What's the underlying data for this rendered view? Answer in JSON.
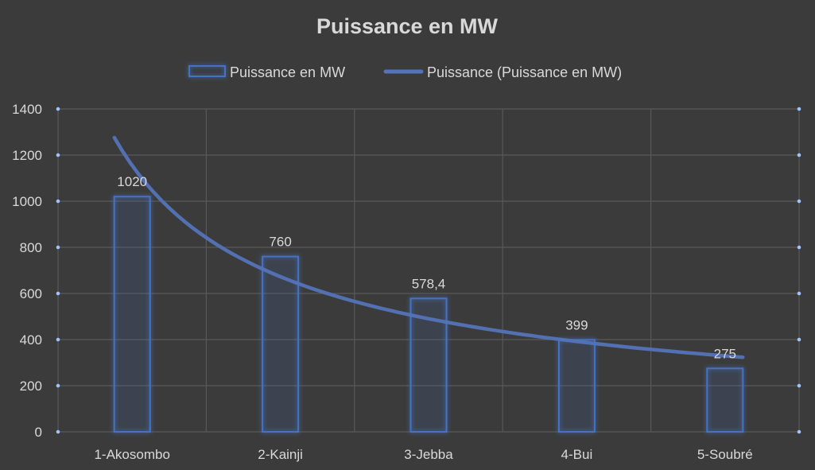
{
  "chart_data": {
    "type": "bar",
    "title": "Puissance en MW",
    "categories": [
      "1-Akosombo",
      "2-Kainji",
      "3-Jebba",
      "4-Bui",
      "5-Soubré"
    ],
    "series": [
      {
        "name": "Puissance en MW",
        "values": [
          1020,
          760,
          578.4,
          399,
          275
        ],
        "data_labels": [
          "1020",
          "760",
          "578,4",
          "399",
          "275"
        ]
      }
    ],
    "trendline": {
      "name": "Puissance (Puissance en MW)",
      "type": "power"
    },
    "ylim": [
      0,
      1400
    ],
    "yticks": [
      0,
      200,
      400,
      600,
      800,
      1000,
      1200,
      1400
    ],
    "xlabel": "",
    "ylabel": "",
    "legend": "top",
    "grid": true,
    "colors": {
      "bar": "#4472c4",
      "trend": "#5473b8",
      "background": "#3b3b3b",
      "text": "#d9d9d9"
    }
  }
}
